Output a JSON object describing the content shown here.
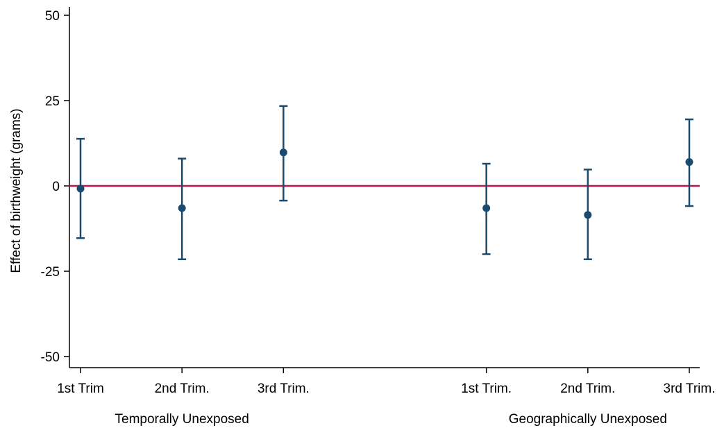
{
  "chart_data": {
    "type": "scatter",
    "subtype": "point-estimate-with-confidence-intervals",
    "title": "",
    "xlabel": "",
    "ylabel": "Effect of birthweight (grams)",
    "ylim": [
      -52,
      54
    ],
    "yticks": [
      50,
      25,
      0,
      -25,
      -50
    ],
    "ytick_labels": [
      "50",
      "25",
      "0",
      "-25",
      "-50"
    ],
    "grid": false,
    "reference_line": {
      "y": 0,
      "color": "#c0144f"
    },
    "marker_color": "#1a4a6e",
    "groups": [
      "Temporally Unexposed",
      "Geographically Unexposed"
    ],
    "x_positions": [
      0,
      1,
      2,
      4,
      5,
      6
    ],
    "xlim": [
      0,
      6
    ],
    "categories": [
      "1st Trim",
      "2nd Trim.",
      "3rd Trim.",
      "1st Trim.",
      "2nd Trim.",
      "3rd Trim."
    ],
    "category_group": [
      0,
      0,
      0,
      1,
      1,
      1
    ],
    "values": [
      -0.8,
      -6.5,
      9.8,
      -6.5,
      -8.5,
      7.0
    ],
    "ci_low": [
      -15.3,
      -21.5,
      -4.3,
      -20.0,
      -21.5,
      -5.9
    ],
    "ci_high": [
      13.8,
      8.0,
      23.4,
      6.5,
      4.8,
      19.5
    ]
  }
}
